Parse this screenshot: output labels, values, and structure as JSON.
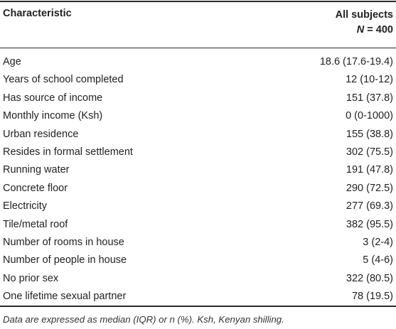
{
  "table": {
    "header": {
      "characteristic": "Characteristic",
      "all_subjects": "All subjects",
      "n_symbol": "N",
      "n_value": "= 400"
    },
    "rows": [
      {
        "label": "Age",
        "value": "18.6 (17.6-19.4)"
      },
      {
        "label": "Years of school completed",
        "value": "12 (10-12)"
      },
      {
        "label": "Has source of income",
        "value": "151 (37.8)"
      },
      {
        "label": "Monthly income (Ksh)",
        "value": "0 (0-1000)"
      },
      {
        "label": "Urban residence",
        "value": "155 (38.8)"
      },
      {
        "label": "Resides in formal settlement",
        "value": "302 (75.5)"
      },
      {
        "label": "Running water",
        "value": "191 (47.8)"
      },
      {
        "label": "Concrete floor",
        "value": "290 (72.5)"
      },
      {
        "label": "Electricity",
        "value": "277 (69.3)"
      },
      {
        "label": "Tile/metal roof",
        "value": "382 (95.5)"
      },
      {
        "label": "Number of rooms in house",
        "value": "3 (2-4)"
      },
      {
        "label": "Number of people in house",
        "value": "5 (4-6)"
      },
      {
        "label": "No prior sex",
        "value": "322 (80.5)"
      },
      {
        "label": "One lifetime sexual partner",
        "value": "78 (19.5)"
      }
    ],
    "footnote": "Data are expressed as median (IQR) or n (%). Ksh, Kenyan shilling."
  }
}
